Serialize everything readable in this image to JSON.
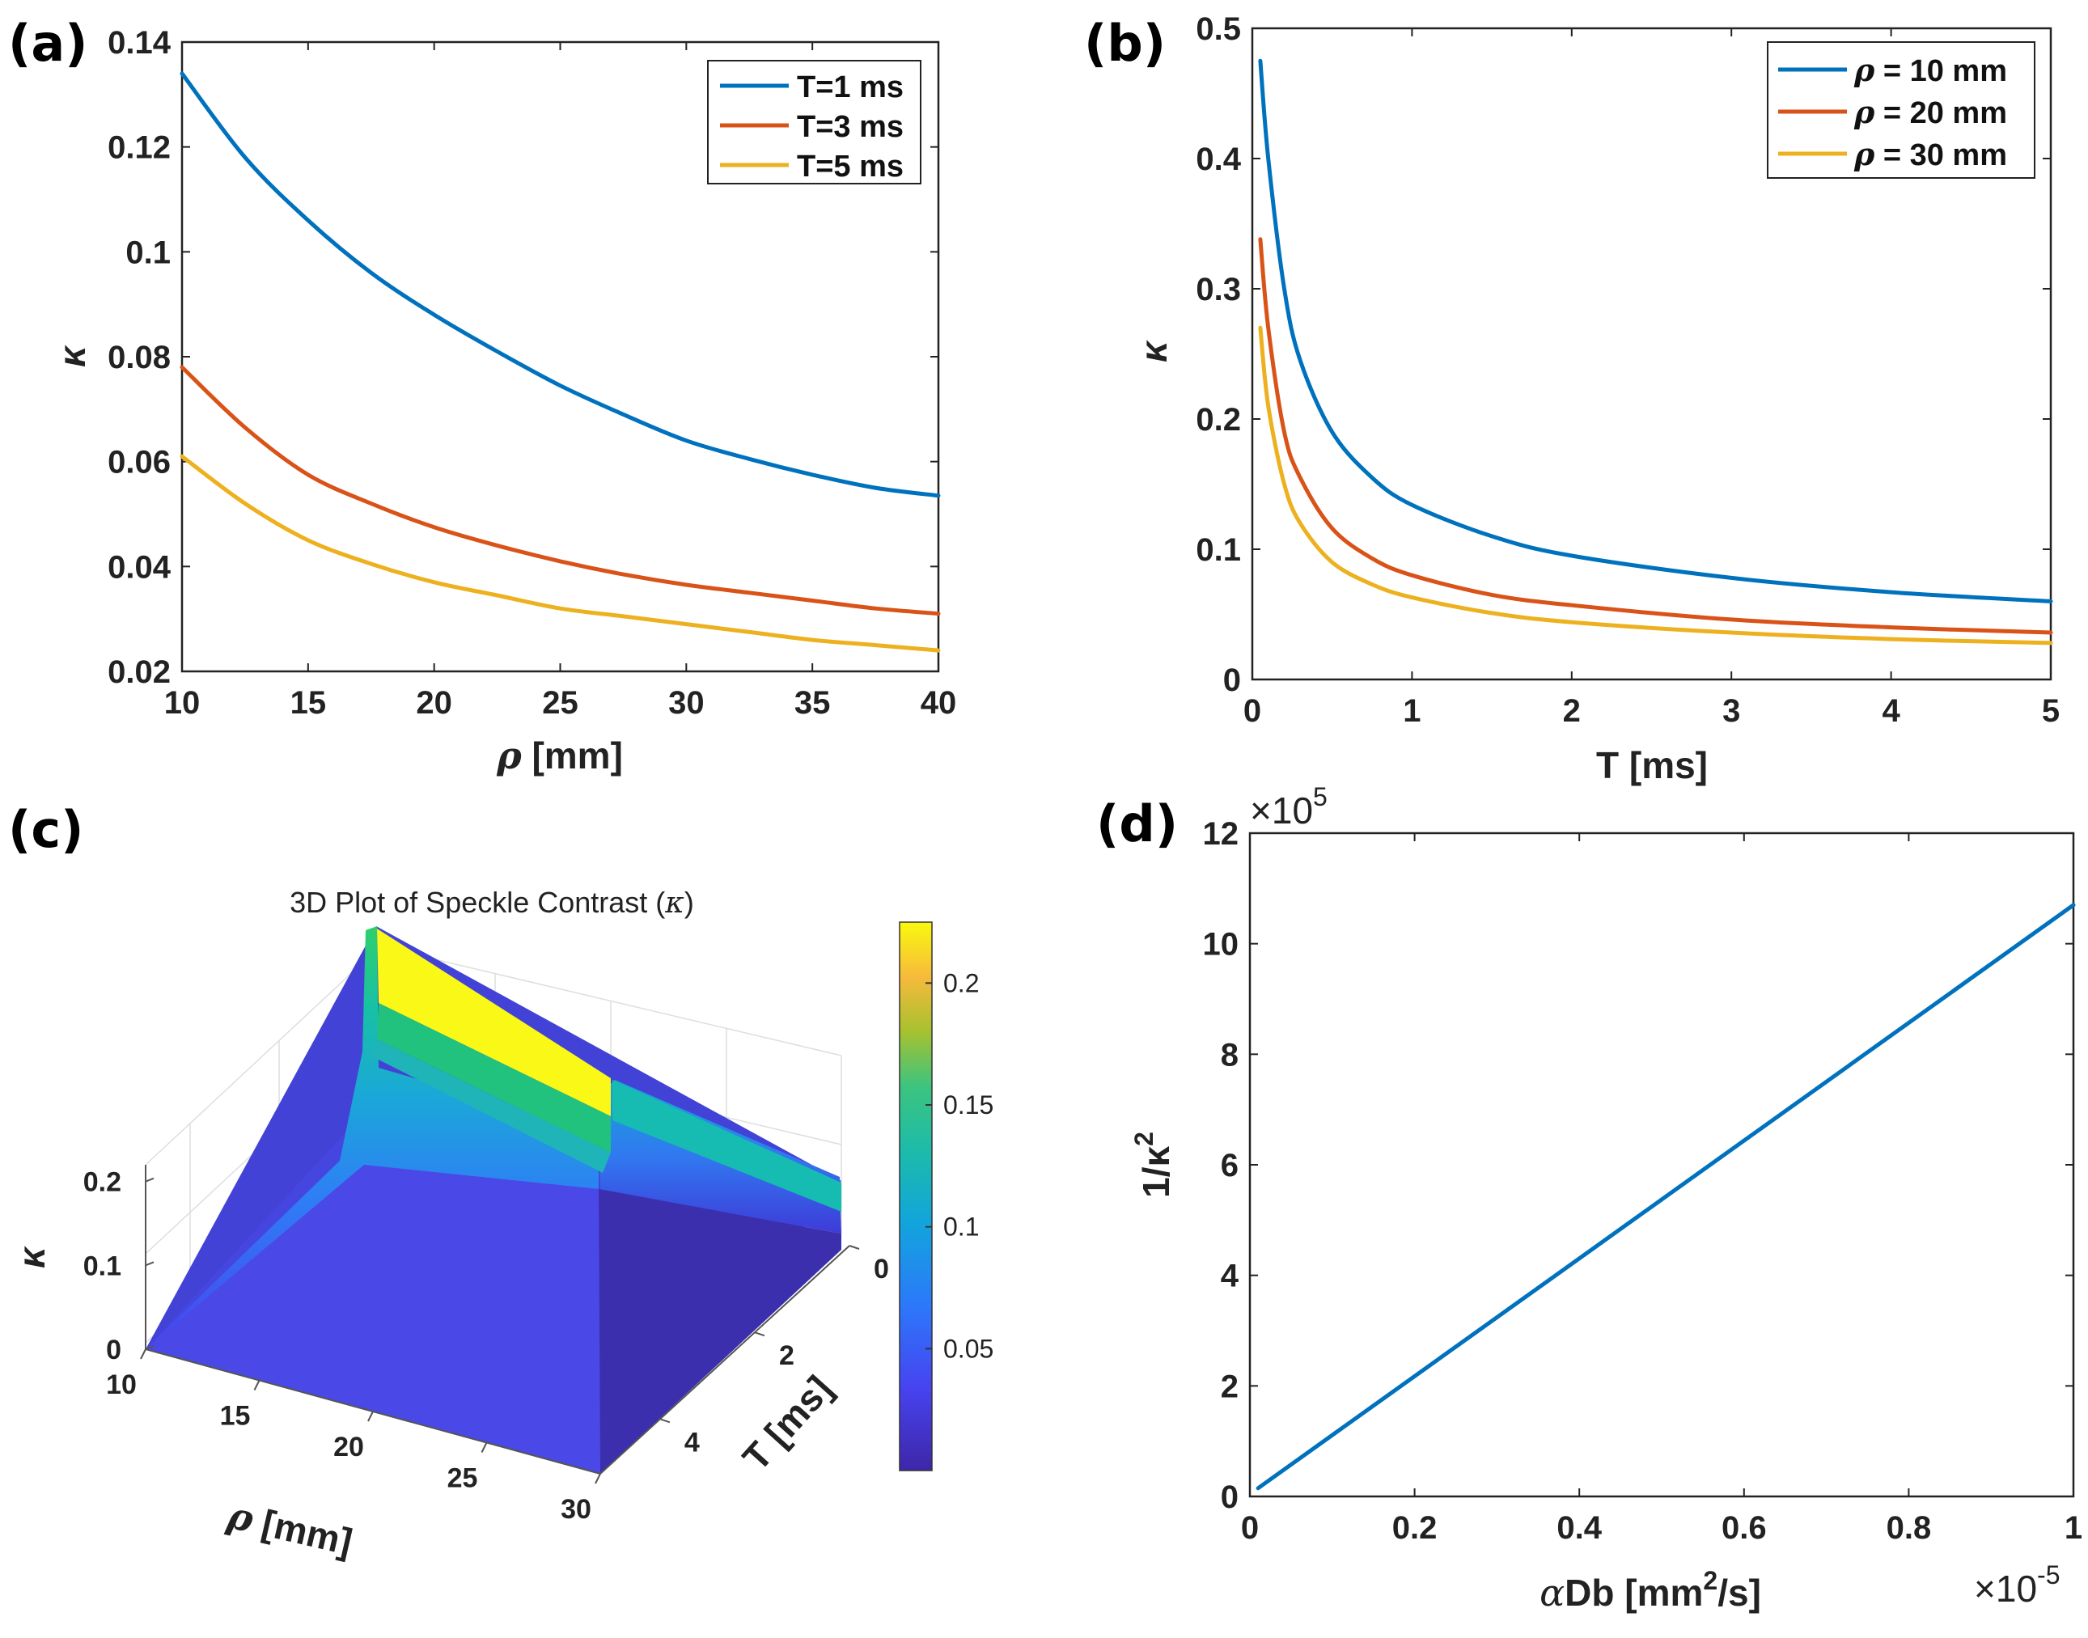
{
  "panels": {
    "a": {
      "label": "(a)"
    },
    "b": {
      "label": "(b)"
    },
    "c": {
      "label": "(c)"
    },
    "d": {
      "label": "(d)"
    }
  },
  "chart_data": [
    {
      "id": "a",
      "type": "line",
      "title": "",
      "xlabel_sym": "ρ",
      "xlabel_unit": "[mm]",
      "ylabel": "κ",
      "xlim": [
        10,
        40
      ],
      "ylim": [
        0.02,
        0.14
      ],
      "xticks": [
        10,
        15,
        20,
        25,
        30,
        35,
        40
      ],
      "xtick_labels": [
        "10",
        "15",
        "20",
        "25",
        "30",
        "35",
        "40"
      ],
      "yticks": [
        0.02,
        0.04,
        0.06,
        0.08,
        0.1,
        0.12,
        0.14
      ],
      "ytick_labels": [
        "0.02",
        "0.04",
        "0.06",
        "0.08",
        "0.1",
        "0.12",
        "0.14"
      ],
      "legend_position": "top-right",
      "series": [
        {
          "name": "T=1 ms",
          "color": "#0072BD",
          "x": [
            10,
            12.5,
            15,
            17.5,
            20,
            22.5,
            25,
            27.5,
            30,
            32.5,
            35,
            37.5,
            40
          ],
          "y": [
            0.134,
            0.118,
            0.106,
            0.096,
            0.088,
            0.081,
            0.0745,
            0.069,
            0.064,
            0.0605,
            0.0575,
            0.055,
            0.0535
          ]
        },
        {
          "name": "T=3 ms",
          "color": "#D95319",
          "x": [
            10,
            12.5,
            15,
            17.5,
            20,
            22.5,
            25,
            27.5,
            30,
            32.5,
            35,
            37.5,
            40
          ],
          "y": [
            0.078,
            0.0665,
            0.0575,
            0.052,
            0.0475,
            0.044,
            0.041,
            0.0385,
            0.0365,
            0.035,
            0.0335,
            0.032,
            0.031
          ]
        },
        {
          "name": "T=5 ms",
          "color": "#EDB120",
          "x": [
            10,
            12.5,
            15,
            17.5,
            20,
            22.5,
            25,
            27.5,
            30,
            32.5,
            35,
            37.5,
            40
          ],
          "y": [
            0.061,
            0.052,
            0.045,
            0.0405,
            0.037,
            0.0345,
            0.032,
            0.0305,
            0.029,
            0.0275,
            0.026,
            0.025,
            0.024
          ]
        }
      ]
    },
    {
      "id": "b",
      "type": "line",
      "title": "",
      "xlabel": "T [ms]",
      "ylabel": "κ",
      "xlim": [
        0,
        5
      ],
      "ylim": [
        0,
        0.5
      ],
      "xticks": [
        0,
        1,
        2,
        3,
        4,
        5
      ],
      "xtick_labels": [
        "0",
        "1",
        "2",
        "3",
        "4",
        "5"
      ],
      "yticks": [
        0,
        0.1,
        0.2,
        0.3,
        0.4,
        0.5
      ],
      "ytick_labels": [
        "0",
        "0.1",
        "0.2",
        "0.3",
        "0.4",
        "0.5"
      ],
      "legend_position": "top-right",
      "series": [
        {
          "name_sym": "ρ",
          "name_rest": " = 10 mm",
          "color": "#0072BD",
          "x": [
            0.05,
            0.1,
            0.2,
            0.3,
            0.5,
            0.75,
            1,
            1.5,
            2,
            3,
            4,
            5
          ],
          "y": [
            0.475,
            0.4,
            0.3,
            0.245,
            0.19,
            0.155,
            0.134,
            0.11,
            0.095,
            0.078,
            0.067,
            0.06
          ]
        },
        {
          "name_sym": "ρ",
          "name_rest": " = 20 mm",
          "color": "#D95319",
          "x": [
            0.05,
            0.1,
            0.2,
            0.3,
            0.5,
            0.75,
            1,
            1.5,
            2,
            3,
            4,
            5
          ],
          "y": [
            0.338,
            0.27,
            0.19,
            0.155,
            0.116,
            0.093,
            0.08,
            0.065,
            0.057,
            0.046,
            0.04,
            0.036
          ]
        },
        {
          "name_sym": "ρ",
          "name_rest": " = 30 mm",
          "color": "#EDB120",
          "x": [
            0.05,
            0.1,
            0.2,
            0.3,
            0.5,
            0.75,
            1,
            1.5,
            2,
            3,
            4,
            5
          ],
          "y": [
            0.27,
            0.21,
            0.15,
            0.12,
            0.09,
            0.073,
            0.063,
            0.051,
            0.044,
            0.036,
            0.031,
            0.028
          ]
        }
      ]
    },
    {
      "id": "c",
      "type": "surface",
      "title_text": "3D Plot of Speckle Contrast (",
      "title_sym": "κ",
      "title_close": ")",
      "xlabel_sym": "ρ",
      "xlabel_unit": "[mm]",
      "ylabel": "T [ms]",
      "zlabel": "κ",
      "xlim": [
        10,
        30
      ],
      "ylim": [
        0,
        5
      ],
      "zlim": [
        0,
        0.22
      ],
      "xticks": [
        10,
        15,
        20,
        25,
        30
      ],
      "xtick_labels": [
        "10",
        "15",
        "20",
        "25",
        "30"
      ],
      "yticks": [
        0,
        2,
        4
      ],
      "ytick_labels": [
        "0",
        "2",
        "4"
      ],
      "zticks": [
        0,
        0.1,
        0.2
      ],
      "ztick_labels": [
        "0",
        "0.1",
        "0.2"
      ],
      "peak_kappa_T0": {
        "rho": [
          10,
          20,
          30
        ],
        "kappa": [
          0.225,
          0.15,
          0.115
        ]
      },
      "kappa_at_T5": 0.005,
      "colorbar": {
        "range": [
          0.0,
          0.225
        ],
        "ticks": [
          0.05,
          0.1,
          0.15,
          0.2
        ],
        "tick_labels": [
          "0.05",
          "0.1",
          "0.15",
          "0.2"
        ],
        "colormap": "parula"
      }
    },
    {
      "id": "d",
      "type": "line",
      "title": "",
      "xlabel_sym": "α",
      "xlabel_text": "Db [mm",
      "xlabel_sup": "2",
      "xlabel_tail": "/s]",
      "ylabel_text": "1/κ",
      "ylabel_sup": "2",
      "x_multiplier": "×10",
      "x_multiplier_exp": "-5",
      "y_multiplier": "×10",
      "y_multiplier_exp": "5",
      "xlim": [
        0,
        1
      ],
      "ylim": [
        0,
        12
      ],
      "xticks": [
        0,
        0.2,
        0.4,
        0.6,
        0.8,
        1
      ],
      "xtick_labels": [
        "0",
        "0.2",
        "0.4",
        "0.6",
        "0.8",
        "1"
      ],
      "yticks": [
        0,
        2,
        4,
        6,
        8,
        10,
        12
      ],
      "ytick_labels": [
        "0",
        "2",
        "4",
        "6",
        "8",
        "10",
        "12"
      ],
      "series": [
        {
          "name": "1/κ²",
          "color": "#0072BD",
          "x": [
            0.01,
            1.0
          ],
          "y": [
            0.15,
            10.7
          ]
        }
      ]
    }
  ]
}
